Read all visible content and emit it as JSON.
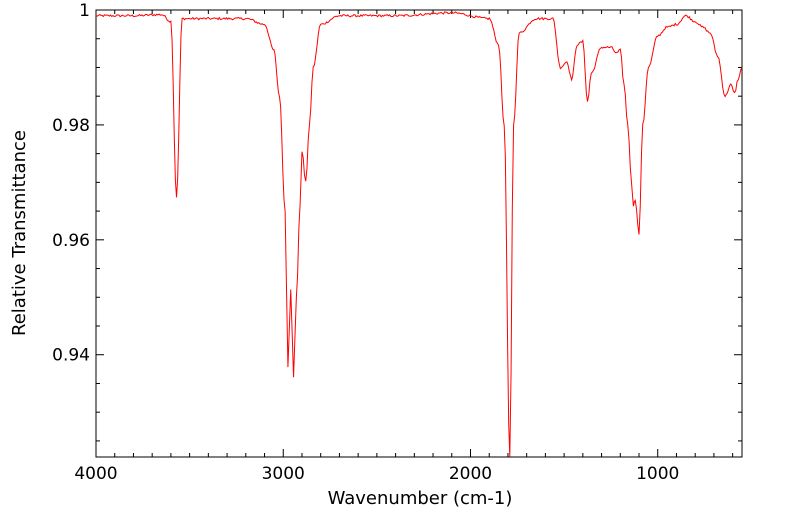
{
  "chart_data": {
    "type": "line",
    "title": "",
    "xlabel": "Wavenumber (cm-1)",
    "ylabel": "Relative Transmittance",
    "xlim": [
      4000,
      550
    ],
    "ylim": [
      0.9222,
      1.0
    ],
    "x_reversed": true,
    "x_ticks": [
      4000,
      3000,
      2000,
      1000
    ],
    "x_tick_labels": [
      "4000",
      "3000",
      "2000",
      "1000"
    ],
    "y_ticks": [
      1.0,
      0.98,
      0.96,
      0.94
    ],
    "y_tick_labels": [
      "1",
      "0.98",
      "0.96",
      "0.94"
    ],
    "series": [
      {
        "name": "spectrum",
        "color": "#ff0000",
        "baseline": 0.9995,
        "points": [
          [
            4000,
            0.999
          ],
          [
            3800,
            0.999
          ],
          [
            3650,
            0.9992
          ],
          [
            3600,
            0.998
          ],
          [
            3570,
            0.9675
          ],
          [
            3540,
            0.9985
          ],
          [
            3400,
            0.9985
          ],
          [
            3200,
            0.9985
          ],
          [
            3100,
            0.9975
          ],
          [
            3050,
            0.993
          ],
          [
            3020,
            0.985
          ],
          [
            2990,
            0.965
          ],
          [
            2975,
            0.938
          ],
          [
            2960,
            0.9515
          ],
          [
            2945,
            0.936
          ],
          [
            2930,
            0.95
          ],
          [
            2910,
            0.966
          ],
          [
            2900,
            0.9755
          ],
          [
            2880,
            0.97
          ],
          [
            2860,
            0.98
          ],
          [
            2840,
            0.99
          ],
          [
            2800,
            0.9975
          ],
          [
            2700,
            0.999
          ],
          [
            2400,
            0.999
          ],
          [
            2100,
            0.9995
          ],
          [
            1900,
            0.9985
          ],
          [
            1850,
            0.994
          ],
          [
            1820,
            0.98
          ],
          [
            1790,
            0.9222
          ],
          [
            1770,
            0.98
          ],
          [
            1740,
            0.996
          ],
          [
            1650,
            0.9985
          ],
          [
            1560,
            0.9985
          ],
          [
            1520,
            0.99
          ],
          [
            1485,
            0.991
          ],
          [
            1460,
            0.988
          ],
          [
            1430,
            0.994
          ],
          [
            1400,
            0.9945
          ],
          [
            1375,
            0.984
          ],
          [
            1355,
            0.989
          ],
          [
            1300,
            0.9935
          ],
          [
            1250,
            0.9935
          ],
          [
            1220,
            0.9925
          ],
          [
            1200,
            0.993
          ],
          [
            1180,
            0.987
          ],
          [
            1160,
            0.98
          ],
          [
            1140,
            0.97
          ],
          [
            1130,
            0.966
          ],
          [
            1120,
            0.967
          ],
          [
            1100,
            0.961
          ],
          [
            1080,
            0.98
          ],
          [
            1050,
            0.99
          ],
          [
            1000,
            0.9955
          ],
          [
            950,
            0.997
          ],
          [
            900,
            0.9975
          ],
          [
            850,
            0.999
          ],
          [
            800,
            0.998
          ],
          [
            760,
            0.997
          ],
          [
            720,
            0.996
          ],
          [
            680,
            0.992
          ],
          [
            640,
            0.985
          ],
          [
            610,
            0.987
          ],
          [
            590,
            0.9855
          ],
          [
            570,
            0.988
          ],
          [
            550,
            0.99
          ]
        ]
      }
    ]
  }
}
